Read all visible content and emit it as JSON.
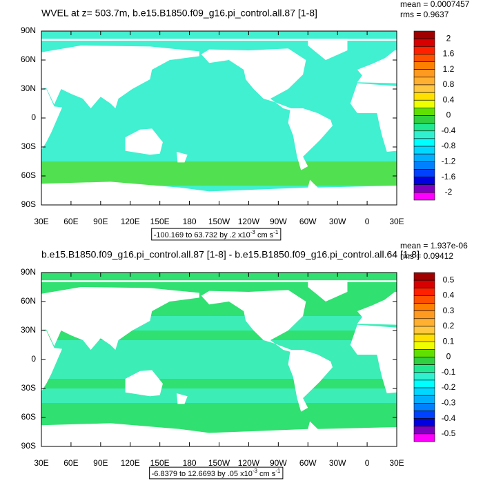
{
  "panels": [
    {
      "title": "WVEL at z= 503.7m, b.e15.B1850.f09_g16.pi_control.all.87 [1-8]",
      "mean": "mean = 0.0007457",
      "rms": "rms = 0.9637",
      "lat_labels": [
        "90N",
        "60N",
        "30N",
        "0",
        "30S",
        "60S",
        "90S"
      ],
      "lon_labels": [
        "30E",
        "60E",
        "90E",
        "120E",
        "150E",
        "180",
        "150W",
        "120W",
        "90W",
        "60W",
        "30W",
        "0",
        "30E"
      ],
      "colorbar": {
        "labels": [
          2,
          1.6,
          1.2,
          0.8,
          0.4,
          0,
          -0.4,
          -0.8,
          -1.2,
          -1.6,
          -2
        ],
        "colors": [
          "#a00000",
          "#d80000",
          "#ff2000",
          "#ff5000",
          "#ff8000",
          "#ff9a20",
          "#ffb030",
          "#ffc840",
          "#ffe000",
          "#f0ff00",
          "#60e000",
          "#30d040",
          "#20e890",
          "#30f0d0",
          "#00ffff",
          "#00d8ff",
          "#00b0ff",
          "#0080ff",
          "#0040ff",
          "#0000e0",
          "#8000c0",
          "#ff00ff"
        ]
      },
      "info": {
        "text": "-100.169 to 63.732 by .2 x10",
        "exp1": "-3",
        "unit": " cm s",
        "exp2": "-1"
      }
    },
    {
      "title": "b.e15.B1850.f09_g16.pi_control.all.87 [1-8] - b.e15.B1850.f09_g16.pi_control.all.64 [1-8]",
      "mean": "mean = 1.937e-06",
      "rms": "rms = 0.09412",
      "lat_labels": [
        "90N",
        "60N",
        "30N",
        "0",
        "30S",
        "60S",
        "90S"
      ],
      "lon_labels": [
        "30E",
        "60E",
        "90E",
        "120E",
        "150E",
        "180",
        "150W",
        "120W",
        "90W",
        "60W",
        "30W",
        "0",
        "30E"
      ],
      "colorbar": {
        "labels": [
          0.5,
          0.4,
          0.3,
          0.2,
          0.1,
          0,
          -0.1,
          -0.2,
          -0.3,
          -0.4,
          -0.5
        ],
        "colors": [
          "#a00000",
          "#d80000",
          "#ff2000",
          "#ff5000",
          "#ff8000",
          "#ff9a20",
          "#ffb030",
          "#ffc840",
          "#ffe000",
          "#f0ff00",
          "#60e000",
          "#30d040",
          "#20e890",
          "#30f0d0",
          "#00ffff",
          "#00d8ff",
          "#00b0ff",
          "#0080ff",
          "#0040ff",
          "#0000e0",
          "#8000c0",
          "#ff00ff"
        ]
      },
      "info": {
        "text": "-6.8379 to 12.6693 by .05 x10",
        "exp1": "-3",
        "unit": " cm s",
        "exp2": "-1"
      }
    }
  ]
}
